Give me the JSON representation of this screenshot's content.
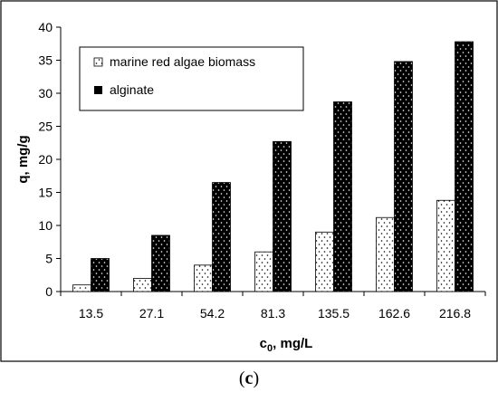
{
  "panel_label": "c",
  "chart_data": {
    "type": "bar",
    "title": "",
    "xlabel": "c0, mg/L",
    "xlabel_main": "c",
    "xlabel_sub": "0",
    "xlabel_rest": ", mg/L",
    "ylabel": "q, mg/g",
    "ylim": [
      0,
      40
    ],
    "yticks": [
      0,
      5,
      10,
      15,
      20,
      25,
      30,
      35,
      40
    ],
    "grid": false,
    "legend_position": "top-left",
    "categories": [
      "13.5",
      "27.1",
      "54.2",
      "81.3",
      "135.5",
      "162.6",
      "216.8"
    ],
    "series": [
      {
        "name": "marine red algae biomass",
        "values": [
          1.0,
          2.0,
          4.0,
          6.0,
          9.0,
          11.2,
          13.8
        ],
        "fill": "#ffffff",
        "dot": "#000000"
      },
      {
        "name": "alginate",
        "values": [
          5.0,
          8.5,
          16.5,
          22.7,
          28.7,
          34.8,
          37.8
        ],
        "fill": "#000000",
        "dot": "#ffffff"
      }
    ]
  }
}
